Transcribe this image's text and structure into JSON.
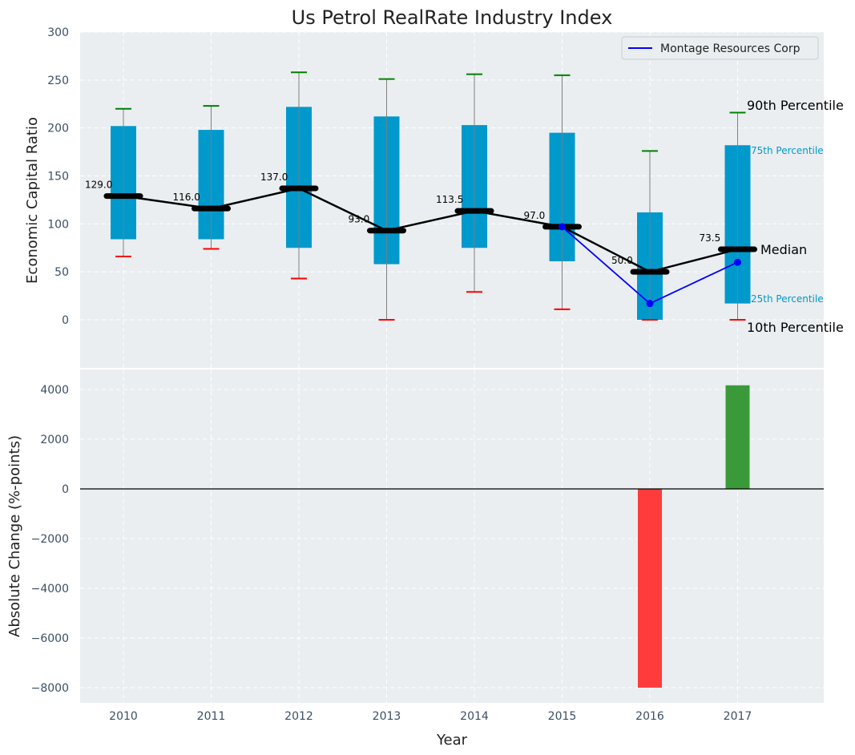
{
  "colors": {
    "panel_bg": "#eaeef0",
    "box": "#0099cc",
    "whisker": "#808080",
    "p90_cap": "#008000",
    "p10_cap": "#ff0000",
    "median": "#000000",
    "company": "#0000ff",
    "bar_positive": "#3a9a3a",
    "bar_negative": "#ff3b3b",
    "pct_label": "#0099cc"
  },
  "chart_data": [
    {
      "type": "box",
      "title": "Us Petrol RealRate Industry Index",
      "ylabel": "Economic Capital Ratio",
      "ylim": [
        -50,
        300
      ],
      "yticks": [
        0,
        50,
        100,
        150,
        200,
        250,
        300
      ],
      "categories": [
        "2010",
        "2011",
        "2012",
        "2013",
        "2014",
        "2015",
        "2016",
        "2017"
      ],
      "p10": [
        66,
        74,
        43,
        0,
        29,
        11,
        0,
        0
      ],
      "p25": [
        84,
        84,
        75,
        58,
        75,
        61,
        0,
        17
      ],
      "median": [
        129.0,
        116.0,
        137.0,
        93.0,
        113.5,
        97.0,
        50.0,
        73.5
      ],
      "median_labels": [
        "129.0",
        "116.0",
        "137.0",
        "93.0",
        "113.5",
        "97.0",
        "50.0",
        "73.5"
      ],
      "p75": [
        202,
        198,
        222,
        212,
        203,
        195,
        112,
        182
      ],
      "p90": [
        220,
        223,
        258,
        251,
        256,
        255,
        176,
        216
      ],
      "company_series": {
        "name": "Montage Resources Corp",
        "x": [
          "2015",
          "2016",
          "2017"
        ],
        "values": [
          97,
          17,
          60
        ]
      },
      "legend": {
        "position": "top-right",
        "entries": [
          "Montage Resources Corp"
        ]
      },
      "percentile_labels": {
        "p90": "90th Percentile",
        "p75": "75th Percentile",
        "median": "Median",
        "p25": "25th Percentile",
        "p10": "10th Percentile"
      },
      "grid": true
    },
    {
      "type": "bar",
      "ylabel": "Absolute Change (%-points)",
      "xlabel": "Year",
      "ylim": [
        -8500,
        4800
      ],
      "yticks": [
        -8000,
        -6000,
        -4000,
        -2000,
        0,
        2000,
        4000
      ],
      "categories": [
        "2010",
        "2011",
        "2012",
        "2013",
        "2014",
        "2015",
        "2016",
        "2017"
      ],
      "values": [
        null,
        null,
        null,
        null,
        null,
        null,
        -8000,
        4170
      ],
      "grid": true
    }
  ]
}
